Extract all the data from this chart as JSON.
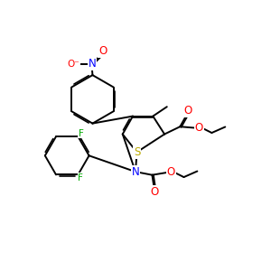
{
  "bg_color": "#ffffff",
  "bond_color": "#000000",
  "bond_width": 1.4,
  "atom_colors": {
    "O": "#ff0000",
    "N": "#0000ff",
    "S": "#bbaa00",
    "F": "#00aa00",
    "C": "#000000"
  },
  "font_size": 7.5
}
